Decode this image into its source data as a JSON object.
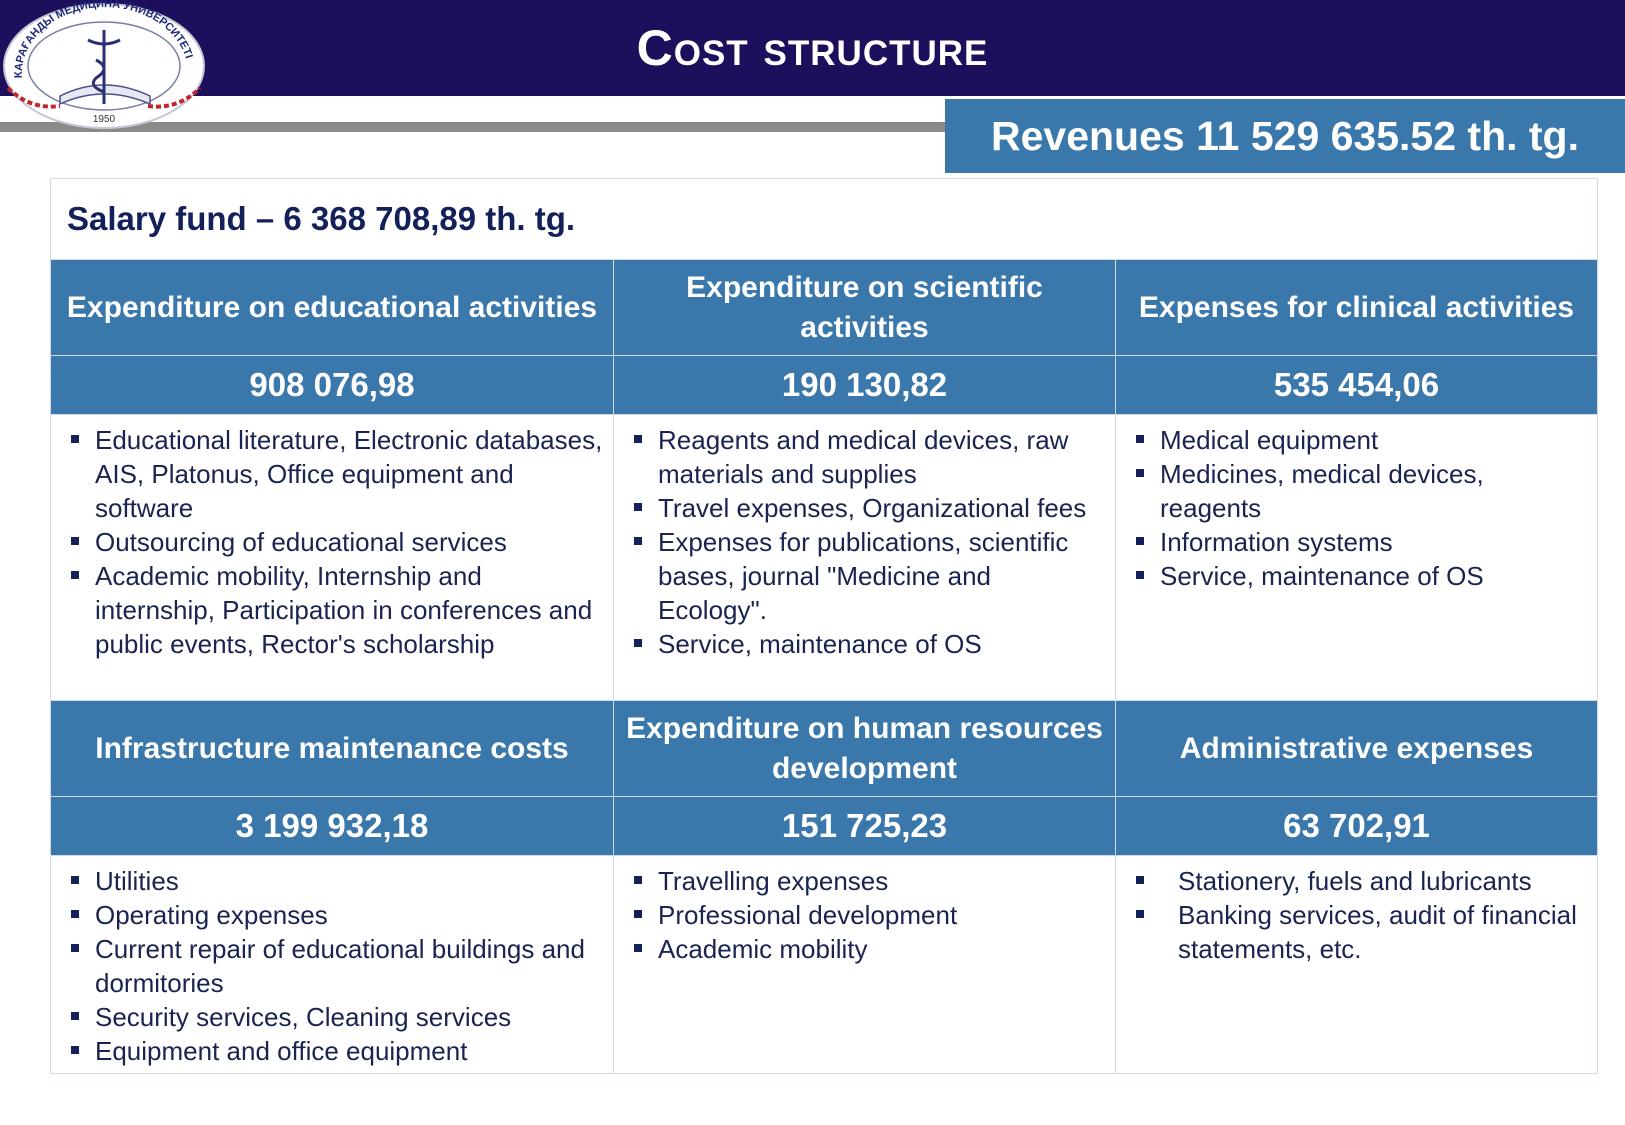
{
  "header": {
    "title": "Cost structure",
    "logo": {
      "arc_text": "КАРАҒАНДЫ МЕДИЦИНА УНИВЕРСИТЕТІ",
      "year": "1950"
    }
  },
  "revenues": "Revenues 11 529 635.52 th. tg.",
  "salary_fund": "Salary fund – 6 368 708,89  th. tg.",
  "table": {
    "sections": [
      [
        {
          "heading": "Expenditure on educational activities",
          "amount": "908 076,98",
          "items": [
            "Educational literature, Electronic databases, AIS, Platonus, Office equipment and software",
            "Outsourcing of educational services",
            "Academic mobility, Internship and internship, Participation in conferences and public events, Rector's scholarship"
          ]
        },
        {
          "heading": "Expenditure on scientific activities",
          "amount": "190 130,82",
          "items": [
            "Reagents and medical devices, raw materials and supplies",
            "Travel expenses, Organizational fees",
            "Expenses for publications, scientific bases, journal \"Medicine and Ecology\".",
            "Service, maintenance of OS"
          ]
        },
        {
          "heading": "Expenses for clinical activities",
          "amount": "535 454,06",
          "items": [
            "Medical equipment",
            "Medicines, medical devices, reagents",
            "Information systems",
            "Service, maintenance of OS"
          ]
        }
      ],
      [
        {
          "heading": "Infrastructure maintenance costs",
          "amount": "3 199 932,18",
          "items": [
            "Utilities",
            "Operating expenses",
            "Current repair of educational buildings and dormitories",
            "Security services, Cleaning services",
            "Equipment and office equipment"
          ]
        },
        {
          "heading": "Expenditure on human resources development",
          "amount": "151 725,23",
          "items": [
            "Travelling expenses",
            "Professional development",
            "Academic mobility"
          ]
        },
        {
          "heading": "Administrative expenses",
          "amount": "63 702,91",
          "items": [
            "Stationery, fuels and lubricants",
            "Banking services, audit of financial statements, etc."
          ]
        }
      ]
    ]
  }
}
